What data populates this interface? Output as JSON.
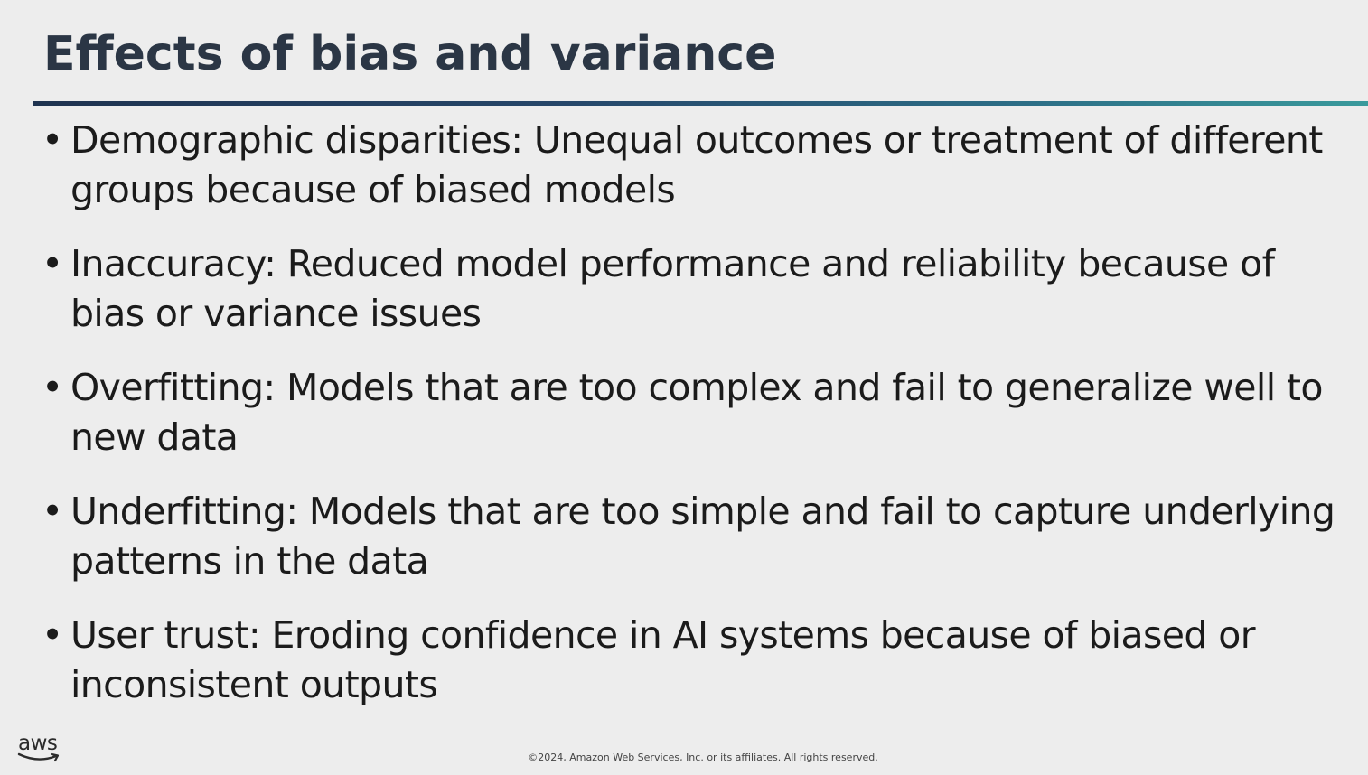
{
  "slide": {
    "title": "Effects of bias and variance",
    "bullet_symbol": "•",
    "bullets": [
      "Demographic disparities: Unequal outcomes or treatment of different groups because of biased models",
      "Inaccuracy: Reduced model performance and reliability because of bias or variance issues",
      "Overfitting: Models that are too complex and fail to generalize well to new data",
      "Underfitting: Models that are too simple and fail to capture underlying patterns in the data",
      "User trust: Eroding confidence in AI systems because of biased or inconsistent outputs"
    ]
  },
  "footer": {
    "logo_text": "aws",
    "copyright": "©2024, Amazon Web Services, Inc. or its affiliates. All rights reserved."
  },
  "colors": {
    "background": "#ededed",
    "title": "#2b3645",
    "rule_start": "#1f3350",
    "rule_end": "#3a9a9c",
    "body_text": "#1b1b1b"
  },
  "icons": {
    "logo": "aws-smile-logo"
  }
}
